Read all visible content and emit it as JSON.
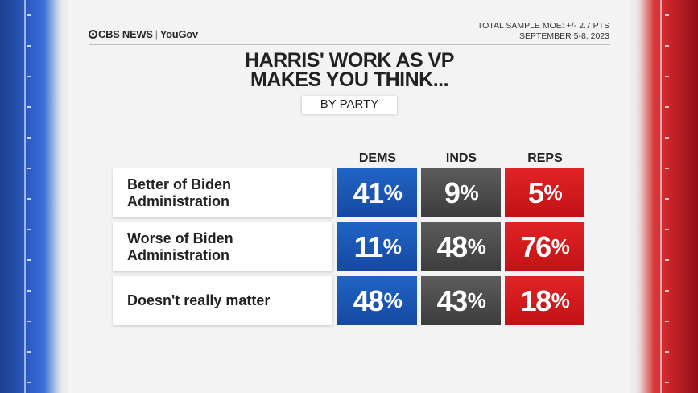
{
  "branding": {
    "logo_main": "CBS NEWS",
    "logo_partner": "YouGov"
  },
  "meta": {
    "moe": "TOTAL SAMPLE MOE: +/- 2.7 PTS",
    "dates": "SEPTEMBER 5-8, 2023"
  },
  "title_line1": "HARRIS' WORK AS VP",
  "title_line2": "MAKES YOU THINK...",
  "subtitle": "BY PARTY",
  "colors": {
    "dems": "#1a56b8",
    "inds": "#4a4a4a",
    "reps": "#d61a1e"
  },
  "chart_data": {
    "type": "table",
    "title": "HARRIS' WORK AS VP MAKES YOU THINK...",
    "subtitle": "BY PARTY",
    "columns": [
      "DEMS",
      "INDS",
      "REPS"
    ],
    "rows": [
      {
        "label": "Better of Biden Administration",
        "values": [
          41,
          9,
          5
        ]
      },
      {
        "label": "Worse of Biden Administration",
        "values": [
          11,
          48,
          76
        ]
      },
      {
        "label": "Doesn't really matter",
        "values": [
          48,
          43,
          18
        ]
      }
    ],
    "unit": "%"
  }
}
